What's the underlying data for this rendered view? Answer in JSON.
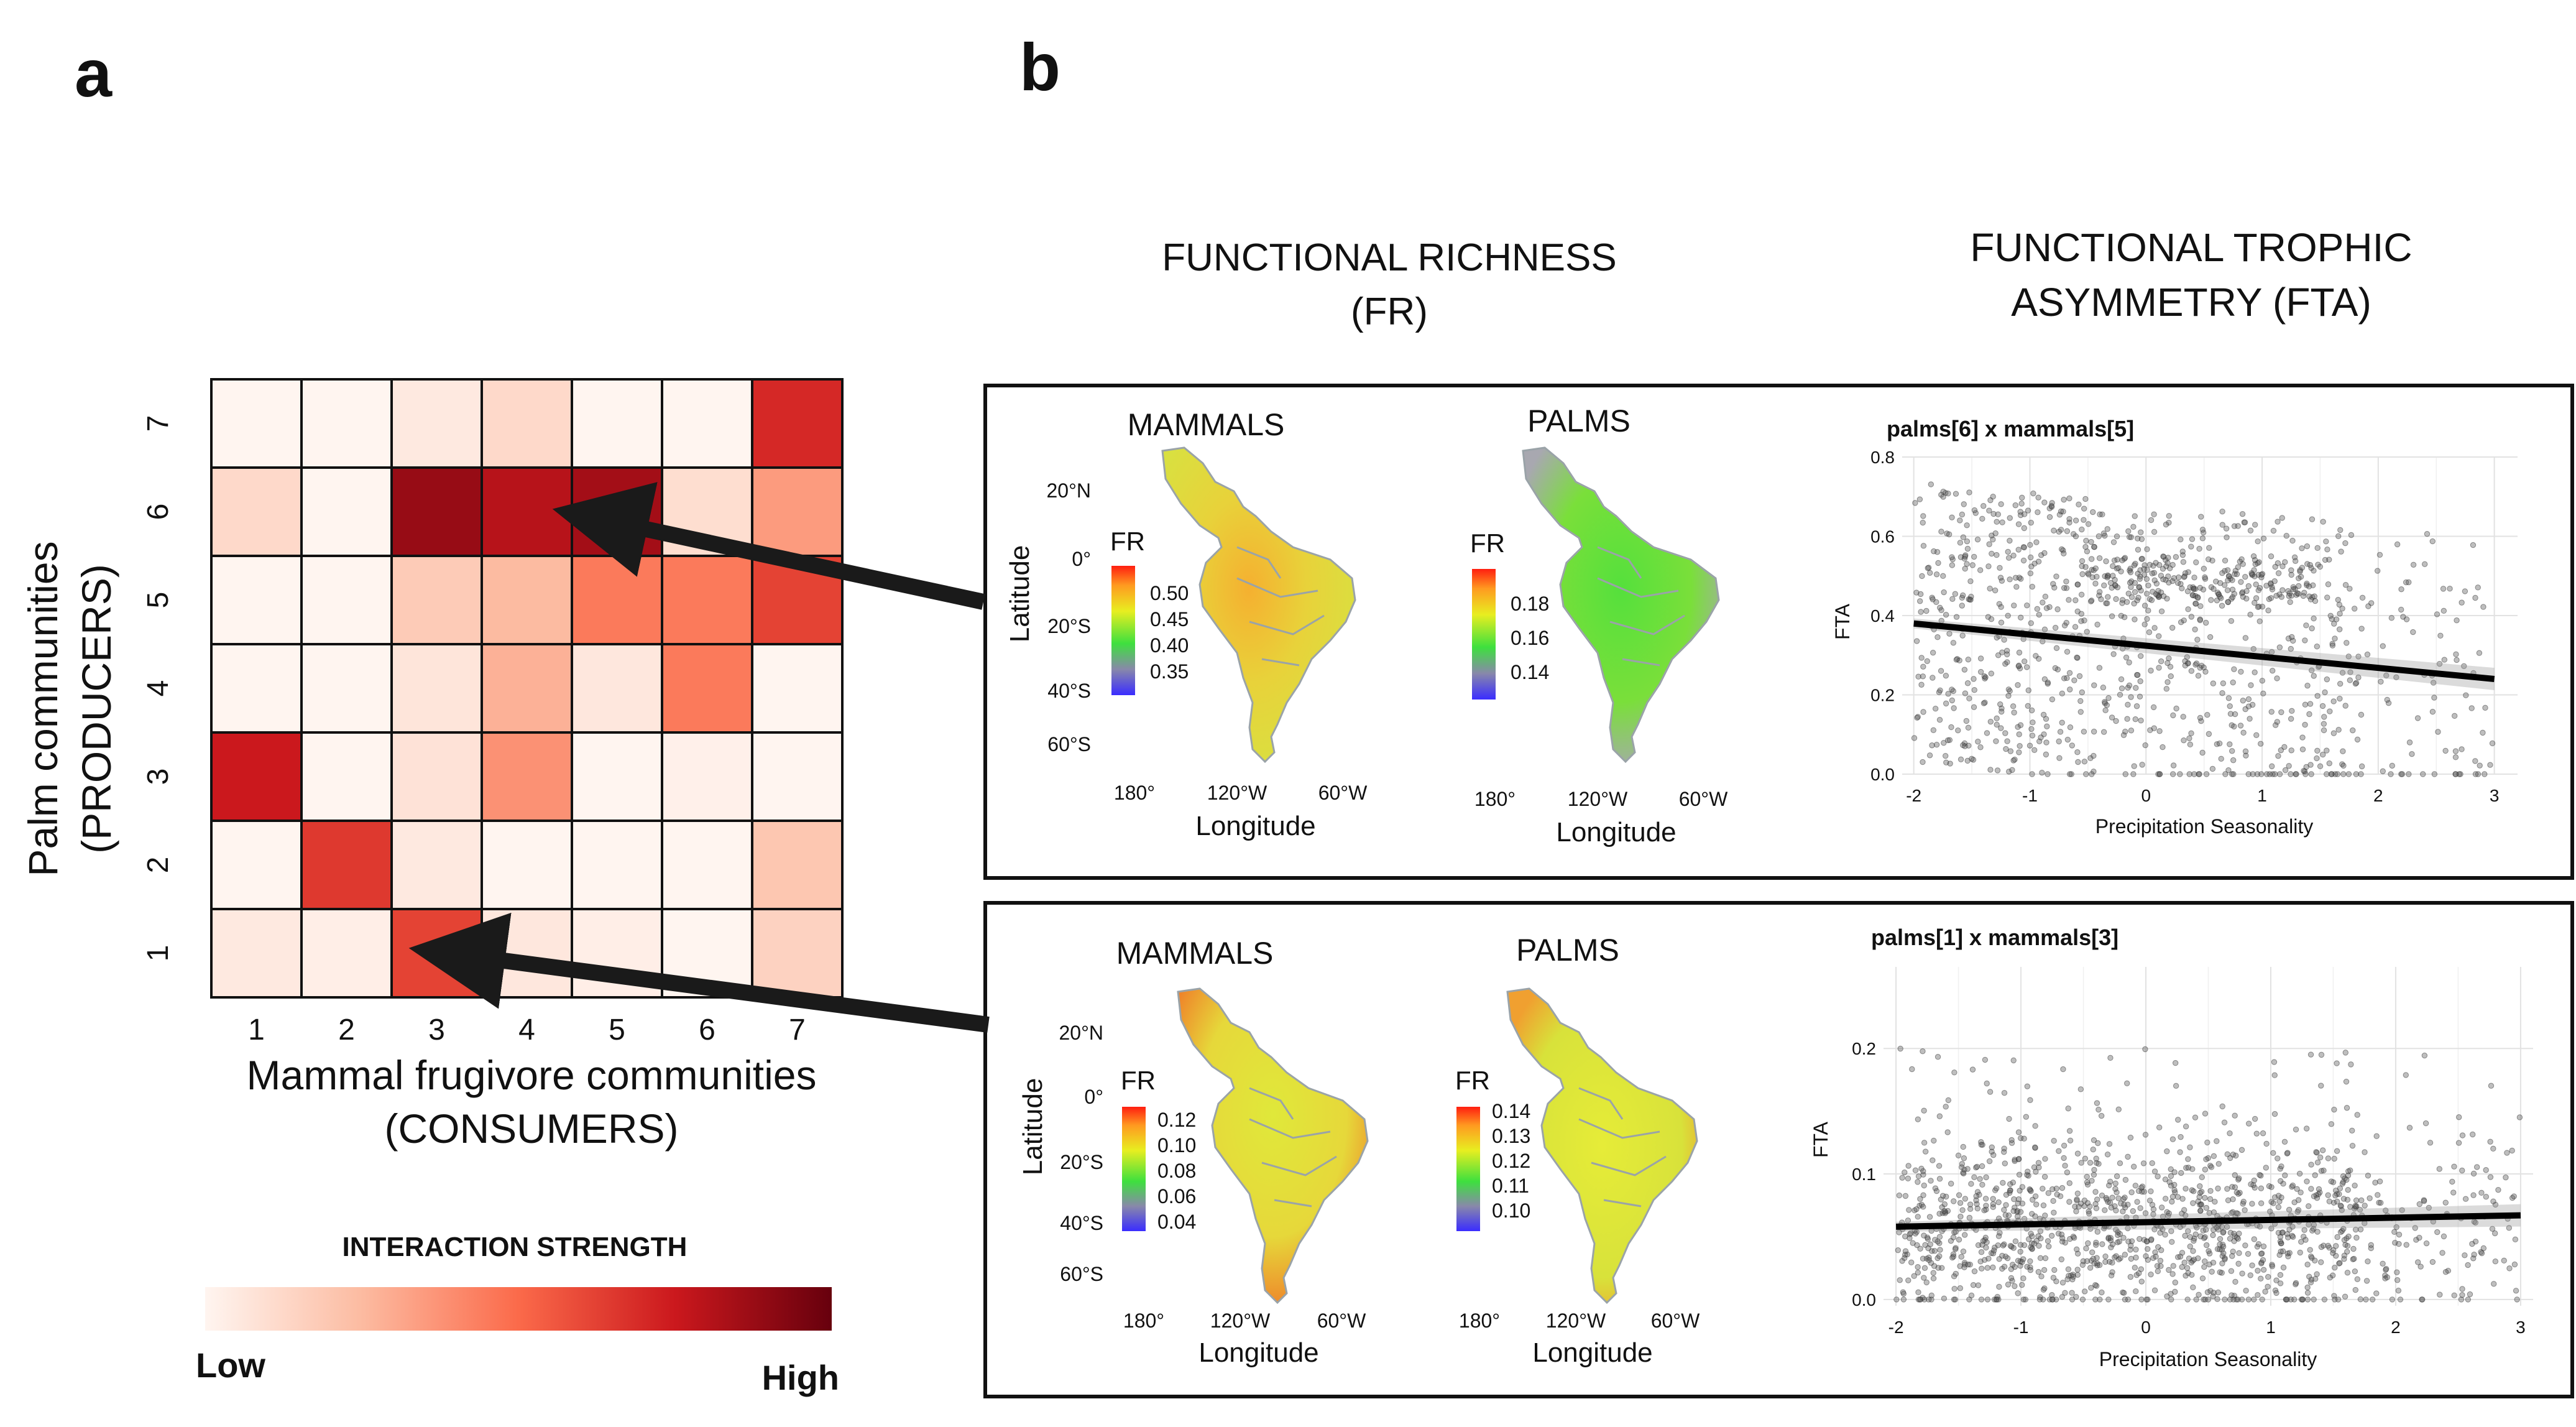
{
  "panel_labels": {
    "a": "a",
    "b": "b"
  },
  "headers": {
    "fr_line1": "FUNCTIONAL RICHNESS",
    "fr_line2": "(FR)",
    "fta_line1": "FUNCTIONAL TROPHIC",
    "fta_line2": "ASYMMETRY  (FTA)"
  },
  "map_text": {
    "mammals": "MAMMALS",
    "palms": "PALMS",
    "legend_title": "FR",
    "latitude": "Latitude",
    "longitude": "Longitude",
    "lat_ticks": [
      "20°N",
      "0°",
      "20°S",
      "40°S",
      "60°S"
    ],
    "lon_ticks": [
      "180°",
      "120°W",
      "60°W"
    ]
  },
  "fr_legends": {
    "top_mammals": [
      "0.50",
      "0.45",
      "0.40",
      "0.35"
    ],
    "top_palms": [
      "0.18",
      "0.16",
      "0.14"
    ],
    "bottom_mammals": [
      "0.12",
      "0.10",
      "0.08",
      "0.06",
      "0.04"
    ],
    "bottom_palms": [
      "0.14",
      "0.13",
      "0.12",
      "0.11",
      "0.10"
    ]
  },
  "legend": {
    "title": "INTERACTION STRENGTH",
    "low": "Low",
    "high": "High"
  },
  "colors": {
    "low": "#fff5f0",
    "high": "#67000d",
    "map_green": "#7cd93a",
    "map_yellow": "#e6e63a",
    "map_orange": "#f0a030"
  },
  "chart_data": [
    {
      "type": "heatmap",
      "xlabel_line1": "Mammal frugivore communities",
      "xlabel_line2": "(CONSUMERS)",
      "ylabel_line1": "Palm communities",
      "ylabel_line2": "(PRODUCERS)",
      "x_categories": [
        "1",
        "2",
        "3",
        "4",
        "5",
        "6",
        "7"
      ],
      "y_categories": [
        "1",
        "2",
        "3",
        "4",
        "5",
        "6",
        "7"
      ],
      "values_by_row_from_top": [
        [
          0.0,
          0.0,
          0.05,
          0.12,
          0.0,
          0.0,
          0.7
        ],
        [
          0.12,
          0.0,
          0.88,
          0.8,
          0.85,
          0.1,
          0.35
        ],
        [
          0.0,
          0.0,
          0.18,
          0.25,
          0.45,
          0.45,
          0.62
        ],
        [
          0.0,
          0.0,
          0.07,
          0.28,
          0.06,
          0.45,
          0.0
        ],
        [
          0.75,
          0.0,
          0.08,
          0.38,
          0.0,
          0.02,
          0.0
        ],
        [
          0.0,
          0.65,
          0.05,
          0.0,
          0.0,
          0.0,
          0.2
        ],
        [
          0.05,
          0.03,
          0.62,
          0.06,
          0.03,
          0.0,
          0.15
        ]
      ]
    },
    {
      "type": "scatter",
      "title": "palms[6] x mammals[5]",
      "xlabel": "Precipitation Seasonality",
      "ylabel": "FTA",
      "xlim": [
        -2.1,
        3.2
      ],
      "ylim": [
        0,
        0.8
      ],
      "x_ticks": [
        "-2",
        "-1",
        "0",
        "1",
        "2",
        "3"
      ],
      "y_ticks": [
        "0.0",
        "0.2",
        "0.4",
        "0.6",
        "0.8"
      ],
      "fit_line": {
        "x0": -2,
        "y0": 0.38,
        "x1": 3,
        "y1": 0.24
      },
      "n_points": 1100,
      "grid": true
    },
    {
      "type": "scatter",
      "title": "palms[1] x mammals[3]",
      "xlabel": "Precipitation Seasonality",
      "ylabel": "FTA",
      "xlim": [
        -2.1,
        3.1
      ],
      "ylim": [
        -0.005,
        0.265
      ],
      "x_ticks": [
        "-2",
        "-1",
        "0",
        "1",
        "2",
        "3"
      ],
      "y_ticks": [
        "0.0",
        "0.1",
        "0.2"
      ],
      "fit_line": {
        "x0": -2,
        "y0": 0.058,
        "x1": 3,
        "y1": 0.067
      },
      "n_points": 1300,
      "grid": true
    }
  ]
}
